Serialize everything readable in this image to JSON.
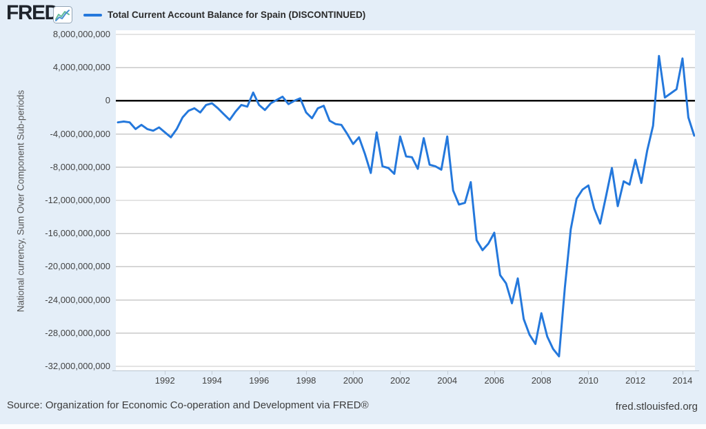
{
  "header": {
    "logo_text": "FRED",
    "logo_reg": "®",
    "title": "Total Current Account Balance for Spain (DISCONTINUED)"
  },
  "y_axis": {
    "title": "National currency, Sum Over Component Sub-periods"
  },
  "footer": {
    "source": "Source: Organization for Economic Co-operation and Development via FRED®",
    "site": "fred.stlouisfed.org"
  },
  "colors": {
    "background": "#e4eef8",
    "plot_background": "#ffffff",
    "series_line": "#2478dc",
    "zero_line": "#000000",
    "grid_line": "#c9c9c9",
    "axis_text": "#424242",
    "logo": "#1f242c",
    "icon_blue": "#4a90d2",
    "icon_teal": "#63bb9a"
  },
  "chart_data": {
    "type": "line",
    "title": "Total Current Account Balance for Spain (DISCONTINUED)",
    "ylabel": "National currency, Sum Over Component Sub-periods",
    "xlabel": "",
    "legend_position": "top",
    "grid": "horizontal",
    "frequency": "quarterly",
    "x_start_year": 1990,
    "x_tick_years": [
      1992,
      1994,
      1996,
      1998,
      2000,
      2002,
      2004,
      2006,
      2008,
      2010,
      2012,
      2014
    ],
    "y_ticks": [
      8000000000,
      4000000000,
      0,
      -4000000000,
      -8000000000,
      -12000000000,
      -16000000000,
      -20000000000,
      -24000000000,
      -28000000000,
      -32000000000
    ],
    "ylim": [
      -32500000000,
      8500000000
    ],
    "values_billions": [
      -2.6,
      -2.5,
      -2.6,
      -3.4,
      -2.9,
      -3.4,
      -3.6,
      -3.2,
      -3.8,
      -4.4,
      -3.4,
      -2.0,
      -1.2,
      -0.9,
      -1.4,
      -0.5,
      -0.3,
      -0.9,
      -1.6,
      -2.3,
      -1.3,
      -0.5,
      -0.7,
      1.0,
      -0.5,
      -1.1,
      -0.3,
      0.1,
      0.5,
      -0.4,
      0.0,
      0.3,
      -1.4,
      -2.1,
      -0.9,
      -0.6,
      -2.4,
      -2.8,
      -2.9,
      -4.0,
      -5.2,
      -4.4,
      -6.4,
      -8.7,
      -3.8,
      -7.9,
      -8.1,
      -8.8,
      -4.3,
      -6.7,
      -6.8,
      -8.2,
      -4.5,
      -7.7,
      -7.9,
      -8.3,
      -4.3,
      -10.8,
      -12.5,
      -12.3,
      -9.8,
      -16.8,
      -18.0,
      -17.2,
      -15.9,
      -21.0,
      -22.0,
      -24.4,
      -21.4,
      -26.3,
      -28.2,
      -29.3,
      -25.6,
      -28.4,
      -29.9,
      -30.8,
      -22.5,
      -15.5,
      -11.8,
      -10.7,
      -10.2,
      -13.0,
      -14.8,
      -11.5,
      -8.1,
      -12.7,
      -9.7,
      -10.1,
      -7.1,
      -9.9,
      -6.0,
      -3.0,
      5.4,
      0.4,
      0.9,
      1.4,
      5.1,
      -2.0,
      -4.2
    ]
  }
}
